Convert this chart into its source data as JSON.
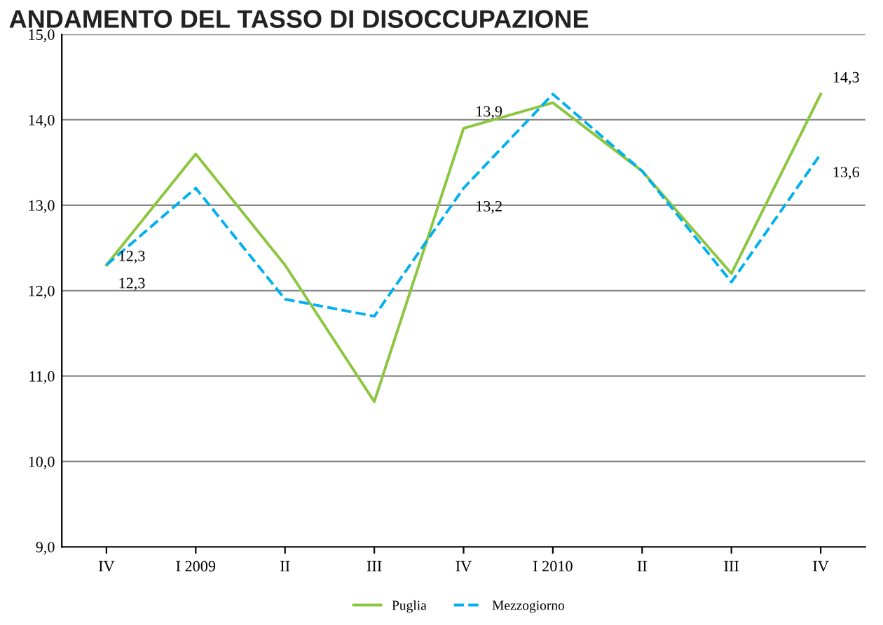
{
  "chart_data": {
    "type": "line",
    "title": "ANDAMENTO DEL TASSO DI DISOCCUPAZIONE",
    "categories": [
      "IV",
      "I 2009",
      "II",
      "III",
      "IV",
      "I 2010",
      "II",
      "III",
      "IV"
    ],
    "series": [
      {
        "name": "Puglia",
        "color": "#8cc63f",
        "line_style": "solid",
        "values": [
          12.3,
          13.6,
          12.3,
          10.7,
          13.9,
          14.2,
          13.4,
          12.2,
          14.3
        ],
        "value_labels": [
          "12,3",
          null,
          null,
          null,
          "13,9",
          null,
          null,
          null,
          "14,3"
        ]
      },
      {
        "name": "Mezzogiorno",
        "color": "#00b0f0",
        "line_style": "dashed",
        "values": [
          12.3,
          13.2,
          11.9,
          11.7,
          13.2,
          14.3,
          13.4,
          12.1,
          13.6
        ],
        "value_labels": [
          "12,3",
          null,
          null,
          null,
          "13,2",
          null,
          null,
          null,
          "13,6"
        ]
      }
    ],
    "ylim": [
      9,
      15
    ],
    "yticks": [
      {
        "value": 9,
        "label": "9,0"
      },
      {
        "value": 10,
        "label": "10,0"
      },
      {
        "value": 11,
        "label": "11,0"
      },
      {
        "value": 12,
        "label": "12,0"
      },
      {
        "value": 13,
        "label": "13,0"
      },
      {
        "value": 14,
        "label": "14,0"
      },
      {
        "value": 15,
        "label": "15,0"
      }
    ],
    "grid": "y",
    "legend": "bottom",
    "marker": "none"
  }
}
